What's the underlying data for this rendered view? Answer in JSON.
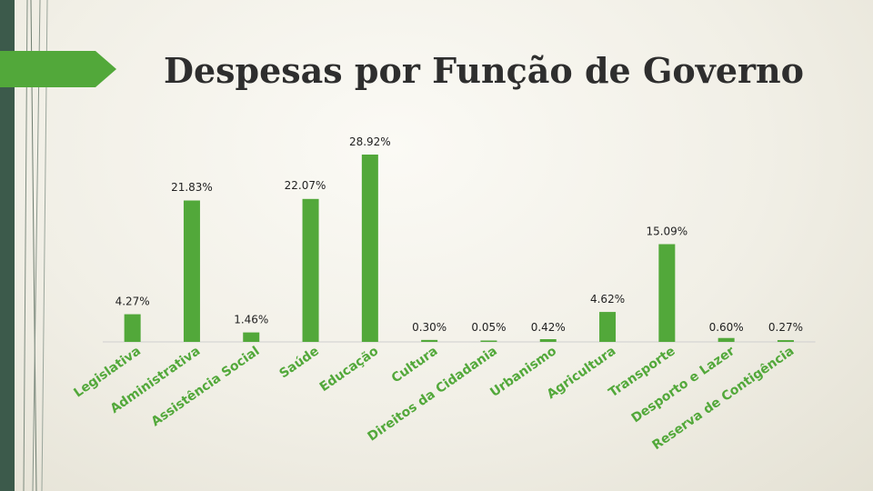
{
  "slide": {
    "title": "Despesas por Função de Governo"
  },
  "colors": {
    "bar": "#52a83a",
    "accent_band": "#3c5a4b",
    "label": "#52a83a"
  },
  "chart_data": {
    "type": "bar",
    "title": "",
    "xlabel": "",
    "ylabel": "",
    "ylim": [
      0,
      30
    ],
    "grid": false,
    "legend": "none",
    "categories": [
      "Legislativa",
      "Administrativa",
      "Assistência Social",
      "Saúde",
      "Educação",
      "Cultura",
      "Direitos da Cidadania",
      "Urbanismo",
      "Agricultura",
      "Transporte",
      "Desporto e Lazer",
      "Reserva de Contigência"
    ],
    "values": [
      4.27,
      21.83,
      1.46,
      22.07,
      28.92,
      0.3,
      0.05,
      0.42,
      4.62,
      15.09,
      0.6,
      0.27
    ],
    "data_labels": [
      "4.27%",
      "21.83%",
      "1.46%",
      "22.07%",
      "28.92%",
      "0.30%",
      "0.05%",
      "0.42%",
      "4.62%",
      "15.09%",
      "0.60%",
      "0.27%"
    ]
  }
}
